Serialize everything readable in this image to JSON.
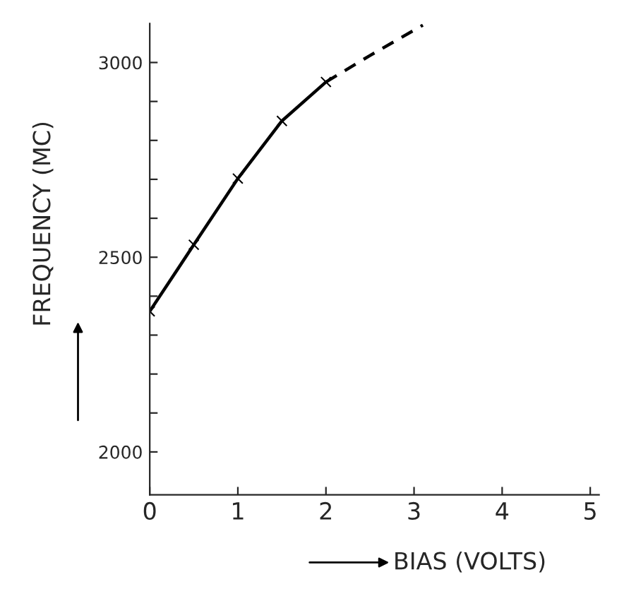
{
  "chart_data": {
    "type": "line",
    "xlabel": "BIAS (VOLTS)",
    "ylabel": "FREQUENCY (MC)",
    "series": [
      {
        "color": "#000000",
        "x": [
          0,
          0.5,
          1,
          1.5,
          2
        ],
        "values": [
          2361,
          2532,
          2702,
          2850,
          2950
        ],
        "marker": "cross",
        "line_style": "solid"
      },
      {
        "color": "#000000",
        "x": [
          2,
          2.5,
          3.1
        ],
        "values": [
          2950,
          3018,
          3096
        ],
        "marker": "none",
        "line_style": "dashed"
      }
    ],
    "xlim": [
      0,
      5.1
    ],
    "xticks": [
      0,
      1,
      2,
      3,
      4,
      5
    ],
    "ylim": [
      1890,
      3100
    ],
    "yticks": [
      {
        "value": 2000,
        "label": "2000"
      },
      {
        "value": 2100,
        "label": null
      },
      {
        "value": 2200,
        "label": null
      },
      {
        "value": 2300,
        "label": null
      },
      {
        "value": 2400,
        "label": null
      },
      {
        "value": 2500,
        "label": "2500"
      },
      {
        "value": 2600,
        "label": null
      },
      {
        "value": 2700,
        "label": null
      },
      {
        "value": 2800,
        "label": null
      },
      {
        "value": 2900,
        "label": null
      },
      {
        "value": 3000,
        "label": "3000"
      }
    ],
    "grid": false
  }
}
